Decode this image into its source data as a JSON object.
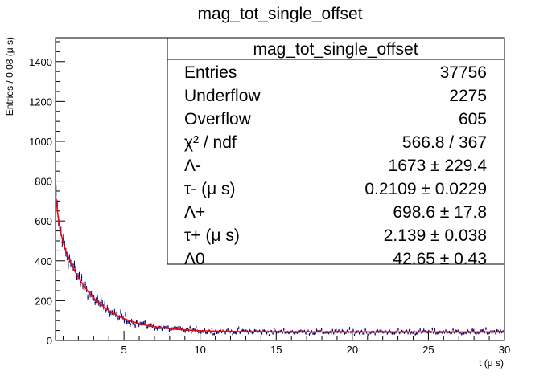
{
  "chart_data": {
    "type": "histogram",
    "title": "mag_tot_single_offset",
    "xlabel": "t (μ s)",
    "ylabel": "Entries / 0.08 (μ s)",
    "xlim": [
      0.5,
      30
    ],
    "ylim": [
      0,
      1520
    ],
    "x_ticks": [
      5,
      10,
      15,
      20,
      25,
      30
    ],
    "y_ticks": [
      0,
      200,
      400,
      600,
      800,
      1000,
      1200,
      1400
    ],
    "grid": false,
    "colors": {
      "data": "#00006e",
      "fit": "#ff0000",
      "frame": "#000000"
    },
    "fit_model": {
      "name_a": "Λ-",
      "a": 1673,
      "tau_a": 0.2109,
      "name_b": "Λ+",
      "b": 698.6,
      "tau_b": 2.139,
      "name_c": "Λ0",
      "c": 42.65
    },
    "stats_box": {
      "title": "mag_tot_single_offset",
      "rows": [
        {
          "label": "Entries",
          "value": "37756"
        },
        {
          "label": "Underflow",
          "value": "2275"
        },
        {
          "label": "Overflow",
          "value": "605"
        },
        {
          "label": "χ² / ndf",
          "value": "566.8 / 367"
        },
        {
          "label": "Λ-",
          "value": "1673 ± 229.4"
        },
        {
          "label": "τ- (μ s)",
          "value": "0.2109 ± 0.0229"
        },
        {
          "label": "Λ+",
          "value": "698.6 ± 17.8"
        },
        {
          "label": "τ+ (μ s)",
          "value": "2.139 ± 0.038"
        },
        {
          "label": "Λ0",
          "value": "42.65 ± 0.43"
        }
      ]
    }
  }
}
